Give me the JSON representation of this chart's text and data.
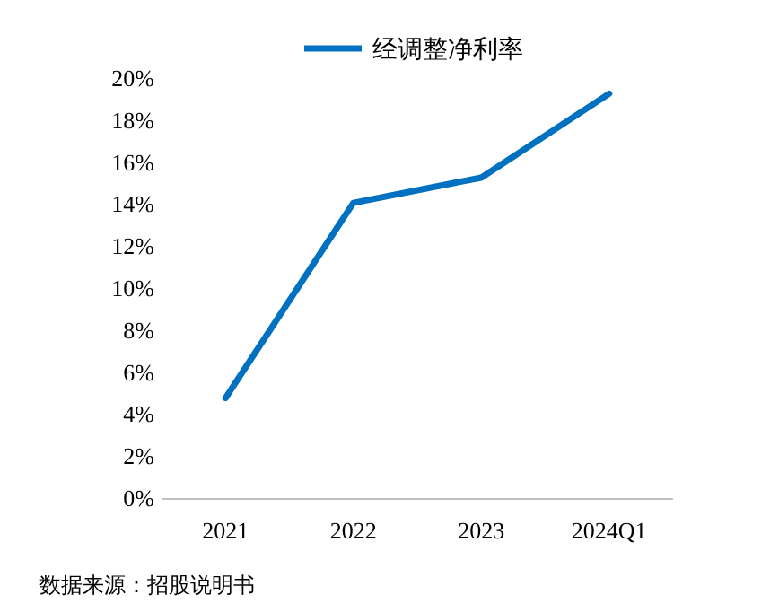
{
  "chart_data": {
    "type": "line",
    "categories": [
      "2021",
      "2022",
      "2023",
      "2024Q1"
    ],
    "series": [
      {
        "name": "经调整净利率",
        "color": "#0070c0",
        "values": [
          4.8,
          14.1,
          15.3,
          19.3
        ]
      }
    ],
    "ylim": [
      0,
      20
    ],
    "yticks": [
      {
        "value": 0,
        "label": "0%"
      },
      {
        "value": 2,
        "label": "2%"
      },
      {
        "value": 4,
        "label": "4%"
      },
      {
        "value": 6,
        "label": "6%"
      },
      {
        "value": 8,
        "label": "8%"
      },
      {
        "value": 10,
        "label": "10%"
      },
      {
        "value": 12,
        "label": "12%"
      },
      {
        "value": 14,
        "label": "14%"
      },
      {
        "value": 16,
        "label": "16%"
      },
      {
        "value": 18,
        "label": "18%"
      },
      {
        "value": 20,
        "label": "20%"
      }
    ],
    "legend": "top",
    "line_style": "solid",
    "annotations": [
      "数据来源：招股说明书"
    ]
  }
}
